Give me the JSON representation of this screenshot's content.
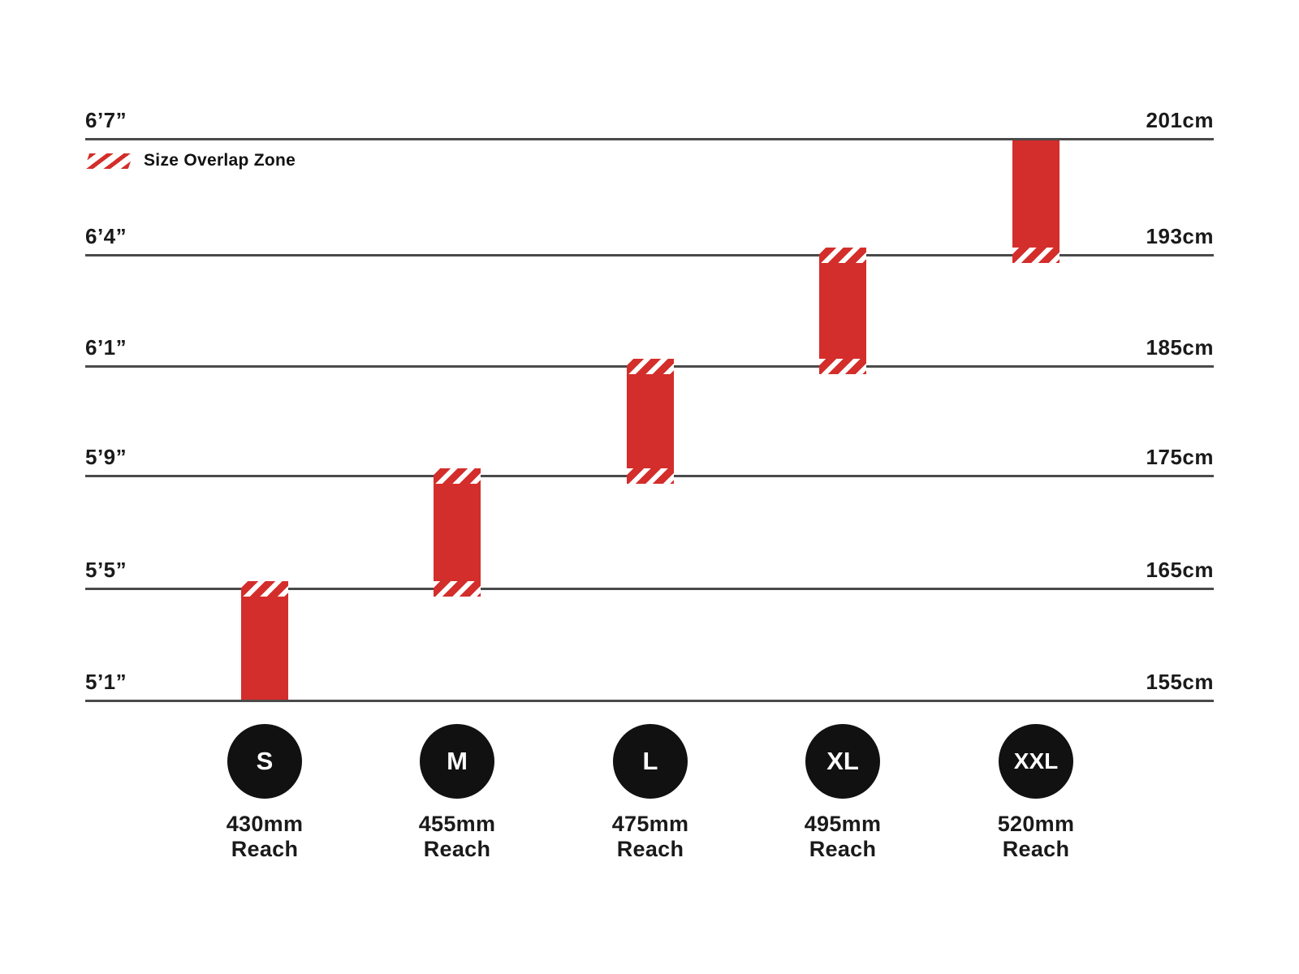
{
  "legend": {
    "label": "Size Overlap Zone"
  },
  "colors": {
    "bar_red": "#d32e2b",
    "grid_line": "#4a4a4a",
    "text": "#1a1a1a",
    "badge_black": "#111111",
    "hatch_white": "#ffffff"
  },
  "chart_data": {
    "type": "bar",
    "subtype": "vertical-range-bars",
    "legend_entries": [
      "Size Overlap Zone"
    ],
    "grid": "on",
    "rows": [
      {
        "imperial": "6’7”",
        "metric": "201cm"
      },
      {
        "imperial": "6’4”",
        "metric": "193cm"
      },
      {
        "imperial": "6’1”",
        "metric": "185cm"
      },
      {
        "imperial": "5’9”",
        "metric": "175cm"
      },
      {
        "imperial": "5’5”",
        "metric": "165cm"
      },
      {
        "imperial": "5’1”",
        "metric": "155cm"
      }
    ],
    "categories": [
      "S",
      "M",
      "L",
      "XL",
      "XXL"
    ],
    "sizes": [
      {
        "label": "S",
        "reach_display": "430mm",
        "reach_caption": "Reach",
        "reach_mm": 430,
        "top_row": 4,
        "bottom_row": 5,
        "min_height": "5’1”",
        "max_height": "5’5”",
        "min_cm": 155,
        "max_cm": 165,
        "overlap_top": true,
        "overlap_bottom": false
      },
      {
        "label": "M",
        "reach_display": "455mm",
        "reach_caption": "Reach",
        "reach_mm": 455,
        "top_row": 3,
        "bottom_row": 4,
        "min_height": "5’5”",
        "max_height": "5’9”",
        "min_cm": 165,
        "max_cm": 175,
        "overlap_top": true,
        "overlap_bottom": true
      },
      {
        "label": "L",
        "reach_display": "475mm",
        "reach_caption": "Reach",
        "reach_mm": 475,
        "top_row": 2,
        "bottom_row": 3,
        "min_height": "5’9”",
        "max_height": "6’1”",
        "min_cm": 175,
        "max_cm": 185,
        "overlap_top": true,
        "overlap_bottom": true
      },
      {
        "label": "XL",
        "reach_display": "495mm",
        "reach_caption": "Reach",
        "reach_mm": 495,
        "top_row": 1,
        "bottom_row": 2,
        "min_height": "6’1”",
        "max_height": "6’4”",
        "min_cm": 185,
        "max_cm": 193,
        "overlap_top": true,
        "overlap_bottom": true
      },
      {
        "label": "XXL",
        "reach_display": "520mm",
        "reach_caption": "Reach",
        "reach_mm": 520,
        "top_row": 0,
        "bottom_row": 1,
        "min_height": "6’4”",
        "max_height": "6’7”",
        "min_cm": 193,
        "max_cm": 201,
        "overlap_top": false,
        "overlap_bottom": true
      }
    ]
  }
}
